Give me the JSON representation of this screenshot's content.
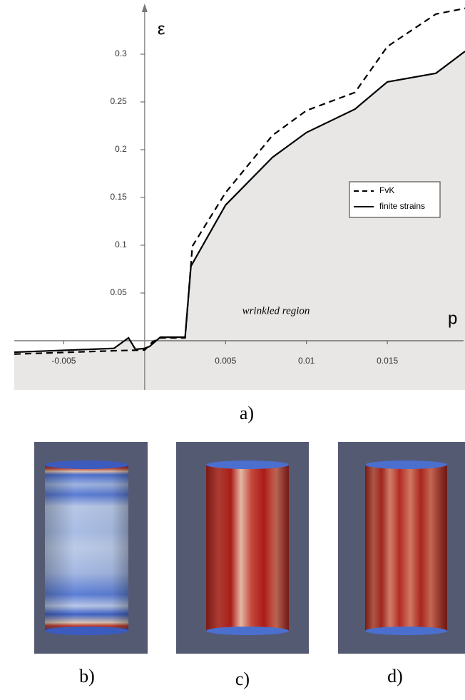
{
  "chart_data": {
    "type": "line",
    "x_label": "p",
    "y_label": "ε",
    "xlim": [
      -0.00806,
      0.0198
    ],
    "ylim": [
      -0.0515,
      0.353
    ],
    "xticks": [
      -0.005,
      0.005,
      0.01,
      0.015
    ],
    "yticks": [
      0.05,
      0.1,
      0.15,
      0.2,
      0.25,
      0.3
    ],
    "legend": "upper right",
    "annotation": "wrinkled region",
    "series": [
      {
        "name": "FvK",
        "color": "#000000",
        "style": "dashed",
        "x": [
          -0.00806,
          -0.0019,
          0,
          0.0005,
          0.00097,
          0.0025,
          0.00295,
          0.005,
          0.0079,
          0.01,
          0.013,
          0.015,
          0.018,
          0.0198
        ],
        "values": [
          -0.014,
          -0.0105,
          -0.0097,
          -0.001,
          0.003,
          0.003,
          0.099,
          0.155,
          0.215,
          0.241,
          0.26,
          0.308,
          0.342,
          0.348
        ]
      },
      {
        "name": "finite strains",
        "color": "#000000",
        "style": "solid",
        "x": [
          -0.00806,
          -0.0019,
          -0.001,
          -0.00057,
          0,
          0.0003,
          0.00097,
          0.0025,
          0.00286,
          0.005,
          0.0079,
          0.01,
          0.013,
          0.015,
          0.018,
          0.0198
        ],
        "values": [
          -0.012,
          -0.008,
          0.003,
          -0.009,
          -0.008,
          -0.006,
          0.0037,
          0.0037,
          0.078,
          0.142,
          0.192,
          0.218,
          0.2425,
          0.271,
          0.28,
          0.303
        ]
      }
    ]
  },
  "panel_labels": [
    "a)",
    "b)",
    "c)",
    "d)"
  ]
}
